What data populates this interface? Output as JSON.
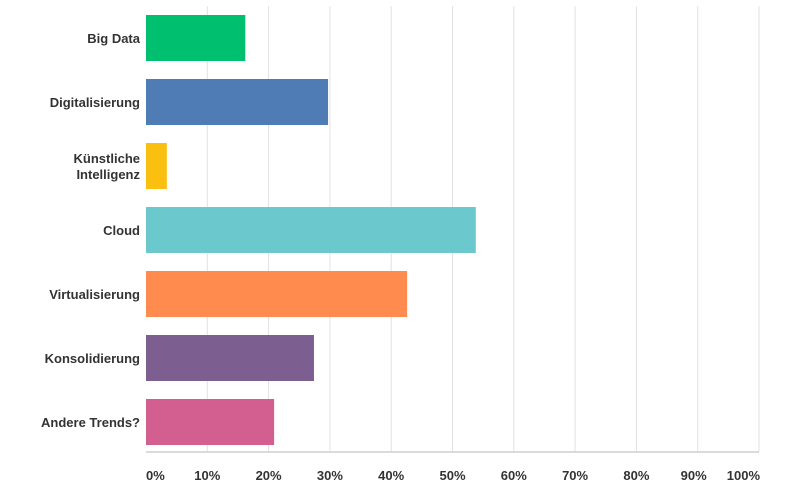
{
  "chart_data": {
    "type": "bar",
    "orientation": "horizontal",
    "categories": [
      [
        "Big Data"
      ],
      [
        "Digitalisierung"
      ],
      [
        "Künstliche",
        "Intelligenz"
      ],
      [
        "Cloud"
      ],
      [
        "Virtualisierung"
      ],
      [
        "Konsolidierung"
      ],
      [
        "Andere Trends?"
      ]
    ],
    "values": [
      16.2,
      29.7,
      3.4,
      53.8,
      42.6,
      27.4,
      20.9
    ],
    "colors": [
      "#00bf6f",
      "#507cb6",
      "#fbbf0f",
      "#6bc8cd",
      "#ff8b4f",
      "#7d5e90",
      "#d25f90"
    ],
    "xlim": [
      0,
      100
    ],
    "ticks": [
      0,
      10,
      20,
      30,
      40,
      50,
      60,
      70,
      80,
      90,
      100
    ],
    "tick_labels": [
      "0%",
      "10%",
      "20%",
      "30%",
      "40%",
      "50%",
      "60%",
      "70%",
      "80%",
      "90%",
      "100%"
    ],
    "grid": true,
    "title": "",
    "xlabel": "",
    "ylabel": ""
  }
}
